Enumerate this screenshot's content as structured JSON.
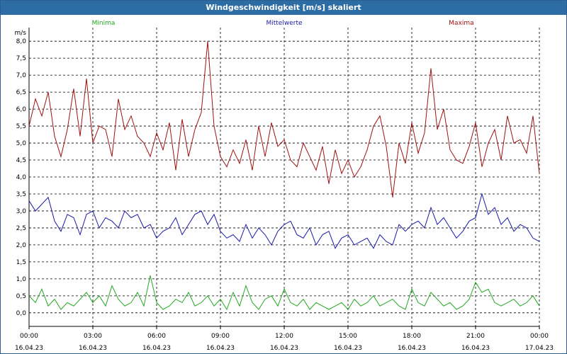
{
  "window": {
    "title": "Windgeschwindigkeit [m/s] skaliert"
  },
  "colors": {
    "min": "#22aa22",
    "avg": "#1a1aaa",
    "max": "#a01010",
    "titlebar": "#2e6da4"
  },
  "chart_data": {
    "type": "line",
    "title": "Windgeschwindigkeit [m/s] skaliert",
    "ylabel": "m/s",
    "xlabel": "",
    "ylim": [
      -0.4,
      8.4
    ],
    "yticks": [
      "0,0",
      "0,5",
      "1,0",
      "1,5",
      "2,0",
      "2,5",
      "3,0",
      "3,5",
      "4,0",
      "4,5",
      "5,0",
      "5,5",
      "6,0",
      "6,5",
      "7,0",
      "7,5",
      "8,0"
    ],
    "ytick_values": [
      0,
      0.5,
      1,
      1.5,
      2,
      2.5,
      3,
      3.5,
      4,
      4.5,
      5,
      5.5,
      6,
      6.5,
      7,
      7.5,
      8
    ],
    "xticks": [
      {
        "time": "00:00",
        "date": "16.04.23"
      },
      {
        "time": "03:00",
        "date": "16.04.23"
      },
      {
        "time": "06:00",
        "date": "16.04.23"
      },
      {
        "time": "09:00",
        "date": "16.04.23"
      },
      {
        "time": "12:00",
        "date": "16.04.23"
      },
      {
        "time": "15:00",
        "date": "16.04.23"
      },
      {
        "time": "18:00",
        "date": "16.04.23"
      },
      {
        "time": "21:00",
        "date": "16.04.23"
      },
      {
        "time": "00:00",
        "date": "17.04.23"
      }
    ],
    "x_hours_range": [
      0,
      24
    ],
    "grid": true,
    "legend_placement": "top",
    "series": [
      {
        "name": "Minima",
        "color": "#22aa22",
        "x": [
          0,
          0.3,
          0.6,
          0.9,
          1.2,
          1.5,
          1.8,
          2.1,
          2.4,
          2.7,
          3.0,
          3.3,
          3.6,
          3.9,
          4.2,
          4.5,
          4.8,
          5.1,
          5.4,
          5.7,
          6.0,
          6.3,
          6.6,
          6.9,
          7.2,
          7.5,
          7.8,
          8.1,
          8.4,
          8.7,
          9.0,
          9.3,
          9.6,
          9.9,
          10.2,
          10.5,
          10.8,
          11.1,
          11.4,
          11.7,
          12.0,
          12.3,
          12.6,
          12.9,
          13.2,
          13.5,
          13.8,
          14.1,
          14.4,
          14.7,
          15.0,
          15.3,
          15.6,
          15.9,
          16.2,
          16.5,
          16.8,
          17.1,
          17.4,
          17.7,
          18.0,
          18.3,
          18.6,
          18.9,
          19.2,
          19.5,
          19.8,
          20.1,
          20.4,
          20.7,
          21.0,
          21.3,
          21.6,
          21.9,
          22.2,
          22.5,
          22.8,
          23.1,
          23.4,
          23.7,
          24.0
        ],
        "values": [
          0.5,
          0.3,
          0.7,
          0.2,
          0.4,
          0.1,
          0.3,
          0.2,
          0.4,
          0.6,
          0.3,
          0.5,
          0.2,
          0.8,
          0.4,
          0.2,
          0.3,
          0.6,
          0.2,
          1.1,
          0.3,
          0.1,
          0.2,
          0.4,
          0.3,
          0.6,
          0.2,
          0.3,
          0.5,
          0.2,
          0.4,
          0.1,
          0.6,
          0.2,
          0.8,
          0.3,
          0.1,
          0.4,
          0.5,
          0.2,
          0.7,
          0.3,
          0.2,
          0.4,
          0.1,
          0.3,
          0.2,
          0.1,
          0.2,
          0.3,
          0.1,
          0.4,
          0.2,
          0.3,
          0.5,
          0.2,
          0.3,
          0.4,
          0.2,
          0.1,
          0.7,
          0.3,
          0.2,
          0.6,
          0.4,
          0.2,
          0.3,
          0.1,
          0.2,
          0.4,
          0.9,
          0.6,
          0.7,
          0.3,
          0.2,
          0.3,
          0.4,
          0.2,
          0.3,
          0.5,
          0.2
        ]
      },
      {
        "name": "Mittelwerte",
        "color": "#1a1aaa",
        "x": [
          0,
          0.3,
          0.6,
          0.9,
          1.2,
          1.5,
          1.8,
          2.1,
          2.4,
          2.7,
          3.0,
          3.3,
          3.6,
          3.9,
          4.2,
          4.5,
          4.8,
          5.1,
          5.4,
          5.7,
          6.0,
          6.3,
          6.6,
          6.9,
          7.2,
          7.5,
          7.8,
          8.1,
          8.4,
          8.7,
          9.0,
          9.3,
          9.6,
          9.9,
          10.2,
          10.5,
          10.8,
          11.1,
          11.4,
          11.7,
          12.0,
          12.3,
          12.6,
          12.9,
          13.2,
          13.5,
          13.8,
          14.1,
          14.4,
          14.7,
          15.0,
          15.3,
          15.6,
          15.9,
          16.2,
          16.5,
          16.8,
          17.1,
          17.4,
          17.7,
          18.0,
          18.3,
          18.6,
          18.9,
          19.2,
          19.5,
          19.8,
          20.1,
          20.4,
          20.7,
          21.0,
          21.3,
          21.6,
          21.9,
          22.2,
          22.5,
          22.8,
          23.1,
          23.4,
          23.7,
          24.0
        ],
        "values": [
          3.3,
          3.0,
          3.2,
          3.4,
          2.7,
          2.4,
          2.9,
          2.8,
          2.3,
          2.9,
          3.0,
          2.5,
          2.8,
          2.7,
          2.5,
          3.0,
          2.8,
          2.9,
          2.5,
          2.6,
          2.2,
          2.4,
          2.5,
          2.8,
          2.3,
          2.6,
          2.9,
          3.0,
          2.6,
          2.9,
          2.4,
          2.2,
          2.3,
          2.1,
          2.6,
          2.2,
          2.5,
          2.3,
          2.0,
          2.4,
          2.6,
          2.7,
          2.3,
          2.2,
          2.5,
          2.0,
          2.3,
          2.4,
          1.9,
          2.2,
          2.3,
          2.0,
          2.1,
          2.2,
          1.9,
          2.3,
          2.1,
          2.0,
          2.6,
          2.4,
          2.6,
          2.7,
          2.5,
          3.1,
          2.6,
          2.8,
          2.5,
          2.2,
          2.4,
          2.7,
          2.8,
          3.5,
          2.9,
          3.1,
          2.6,
          2.8,
          2.4,
          2.6,
          2.5,
          2.2,
          2.1
        ]
      },
      {
        "name": "Maxima",
        "color": "#a01010",
        "x": [
          0,
          0.3,
          0.6,
          0.9,
          1.2,
          1.5,
          1.8,
          2.1,
          2.4,
          2.7,
          3.0,
          3.3,
          3.6,
          3.9,
          4.2,
          4.5,
          4.8,
          5.1,
          5.4,
          5.7,
          6.0,
          6.3,
          6.6,
          6.9,
          7.2,
          7.5,
          7.8,
          8.1,
          8.4,
          8.7,
          9.0,
          9.3,
          9.6,
          9.9,
          10.2,
          10.5,
          10.8,
          11.1,
          11.4,
          11.7,
          12.0,
          12.3,
          12.6,
          12.9,
          13.2,
          13.5,
          13.8,
          14.1,
          14.4,
          14.7,
          15.0,
          15.3,
          15.6,
          15.9,
          16.2,
          16.5,
          16.8,
          17.1,
          17.4,
          17.7,
          18.0,
          18.3,
          18.6,
          18.9,
          19.2,
          19.5,
          19.8,
          20.1,
          20.4,
          20.7,
          21.0,
          21.3,
          21.6,
          21.9,
          22.2,
          22.5,
          22.8,
          23.1,
          23.4,
          23.7,
          24.0
        ],
        "values": [
          5.5,
          6.3,
          5.8,
          6.5,
          5.2,
          4.6,
          5.4,
          6.6,
          5.2,
          6.9,
          5.0,
          5.5,
          5.4,
          4.6,
          6.3,
          5.4,
          5.8,
          5.2,
          5.0,
          4.6,
          5.3,
          4.8,
          5.6,
          4.2,
          5.7,
          4.6,
          5.4,
          5.9,
          8.0,
          5.5,
          4.6,
          4.3,
          4.8,
          4.4,
          5.1,
          4.2,
          5.5,
          4.6,
          5.6,
          4.9,
          5.1,
          4.5,
          4.3,
          5.0,
          4.6,
          4.2,
          4.9,
          3.8,
          4.8,
          4.1,
          4.5,
          4.0,
          4.3,
          4.8,
          5.5,
          5.8,
          4.9,
          3.4,
          5.0,
          4.4,
          5.6,
          4.7,
          5.3,
          7.2,
          5.4,
          6.0,
          4.8,
          4.5,
          4.4,
          4.9,
          5.6,
          4.3,
          5.0,
          5.4,
          4.5,
          5.8,
          5.0,
          5.1,
          4.7,
          5.8,
          4.1
        ]
      }
    ]
  }
}
